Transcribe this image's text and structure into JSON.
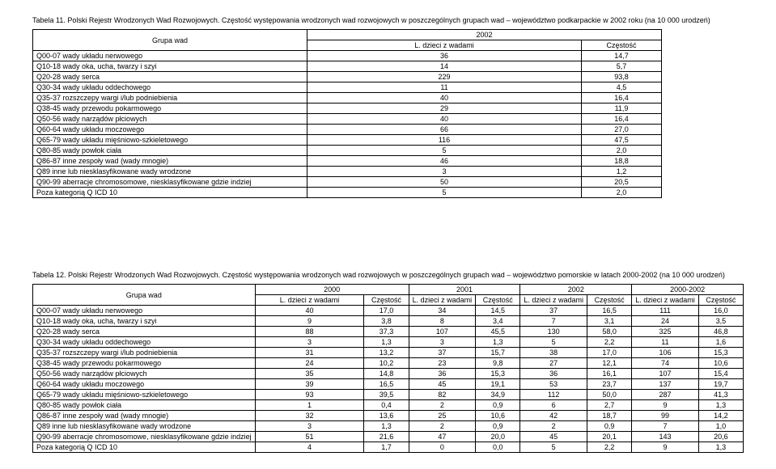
{
  "table1": {
    "caption": "Tabela 11. Polski Rejestr Wrodzonych Wad Rozwojowych. Częstość występowania wrodzonych wad rozwojowych w poszczególnych grupach wad – województwo podkarpackie w 2002 roku (na 10 000 urodzeń)",
    "group_header": "Grupa wad",
    "year_header": "2002",
    "col_count": "L. dzieci z wadami",
    "col_freq": "Częstość",
    "rows": [
      {
        "label": "Q00-07 wady układu nerwowego",
        "n": "36",
        "f": "14,7"
      },
      {
        "label": "Q10-18 wady oka, ucha, twarzy i szyi",
        "n": "14",
        "f": "5,7"
      },
      {
        "label": "Q20-28 wady serca",
        "n": "229",
        "f": "93,8"
      },
      {
        "label": "Q30-34 wady układu oddechowego",
        "n": "11",
        "f": "4,5"
      },
      {
        "label": "Q35-37 rozszczepy wargi i/lub podniebienia",
        "n": "40",
        "f": "16,4"
      },
      {
        "label": "Q38-45 wady przewodu pokarmowego",
        "n": "29",
        "f": "11,9"
      },
      {
        "label": "Q50-56 wady narządów płciowych",
        "n": "40",
        "f": "16,4"
      },
      {
        "label": "Q60-64 wady układu moczowego",
        "n": "66",
        "f": "27,0"
      },
      {
        "label": "Q65-79 wady układu mięśniowo-szkieletowego",
        "n": "116",
        "f": "47,5"
      },
      {
        "label": "Q80-85 wady powłok ciała",
        "n": "5",
        "f": "2,0"
      },
      {
        "label": "Q86-87 inne zespoły wad (wady mnogie)",
        "n": "46",
        "f": "18,8"
      },
      {
        "label": "Q89 inne lub niesklasyfikowane wady wrodzone",
        "n": "3",
        "f": "1,2"
      },
      {
        "label": "Q90-99 aberracje chromosomowe, niesklasyfikowane gdzie indziej",
        "n": "50",
        "f": "20,5"
      },
      {
        "label": "Poza kategorią Q ICD 10",
        "n": "5",
        "f": "2,0"
      }
    ]
  },
  "table2": {
    "caption": "Tabela 12. Polski Rejestr Wrodzonych Wad Rozwojowych. Częstość występowania wrodzonych wad rozwojowych w poszczególnych grupach wad – województwo pomorskie w latach 2000-2002 (na 10 000 urodzeń)",
    "group_header": "Grupa wad",
    "years": [
      "2000",
      "2001",
      "2002",
      "2000-2002"
    ],
    "col_count": "L. dzieci z wadami",
    "col_freq": "Częstość",
    "rows": [
      {
        "label": "Q00-07 wady układu nerwowego",
        "v": [
          "40",
          "17,0",
          "34",
          "14,5",
          "37",
          "16,5",
          "111",
          "16,0"
        ]
      },
      {
        "label": "Q10-18 wady oka, ucha, twarzy i szyi",
        "v": [
          "9",
          "3,8",
          "8",
          "3,4",
          "7",
          "3,1",
          "24",
          "3,5"
        ]
      },
      {
        "label": "Q20-28 wady serca",
        "v": [
          "88",
          "37,3",
          "107",
          "45,5",
          "130",
          "58,0",
          "325",
          "46,8"
        ]
      },
      {
        "label": "Q30-34 wady układu oddechowego",
        "v": [
          "3",
          "1,3",
          "3",
          "1,3",
          "5",
          "2,2",
          "11",
          "1,6"
        ]
      },
      {
        "label": "Q35-37 rozszczepy wargi i/lub podniebienia",
        "v": [
          "31",
          "13,2",
          "37",
          "15,7",
          "38",
          "17,0",
          "106",
          "15,3"
        ]
      },
      {
        "label": "Q38-45 wady przewodu pokarmowego",
        "v": [
          "24",
          "10,2",
          "23",
          "9,8",
          "27",
          "12,1",
          "74",
          "10,6"
        ]
      },
      {
        "label": "Q50-56 wady narządów płciowych",
        "v": [
          "35",
          "14,8",
          "36",
          "15,3",
          "36",
          "16,1",
          "107",
          "15,4"
        ]
      },
      {
        "label": "Q60-64 wady układu moczowego",
        "v": [
          "39",
          "16,5",
          "45",
          "19,1",
          "53",
          "23,7",
          "137",
          "19,7"
        ]
      },
      {
        "label": "Q65-79 wady układu mięśniowo-szkieletowego",
        "v": [
          "93",
          "39,5",
          "82",
          "34,9",
          "112",
          "50,0",
          "287",
          "41,3"
        ]
      },
      {
        "label": "Q80-85 wady powłok ciała",
        "v": [
          "1",
          "0,4",
          "2",
          "0,9",
          "6",
          "2,7",
          "9",
          "1,3"
        ]
      },
      {
        "label": "Q86-87 inne zespoły wad (wady mnogie)",
        "v": [
          "32",
          "13,6",
          "25",
          "10,6",
          "42",
          "18,7",
          "99",
          "14,2"
        ]
      },
      {
        "label": "Q89 inne lub niesklasyfikowane wady wrodzone",
        "v": [
          "3",
          "1,3",
          "2",
          "0,9",
          "2",
          "0,9",
          "7",
          "1,0"
        ]
      },
      {
        "label": "Q90-99 aberracje chromosomowe, niesklasyfikowane gdzie indziej",
        "v": [
          "51",
          "21,6",
          "47",
          "20,0",
          "45",
          "20,1",
          "143",
          "20,6"
        ]
      },
      {
        "label": "Poza kategorią Q ICD 10",
        "v": [
          "4",
          "1,7",
          "0",
          "0,0",
          "5",
          "2,2",
          "9",
          "1,3"
        ]
      }
    ]
  }
}
